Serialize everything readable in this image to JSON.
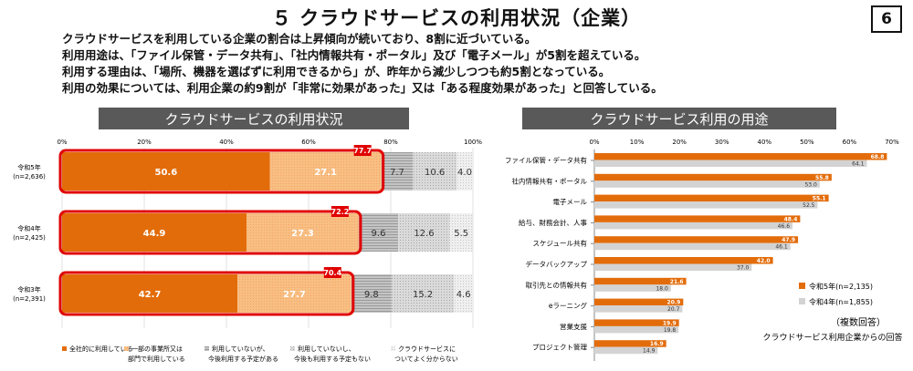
{
  "page": {
    "title": "５ クラウドサービスの利用状況（企業）",
    "number": "6",
    "summary": [
      "クラウドサービスを利用している企業の割合は上昇傾向が続いており、8割に近づいている。",
      "利用用途は、「ファイル保管・データ共有」、「社内情報共有・ポータル」及び「電子メール」が5割を超えている。",
      "利用する理由は、「場所、機器を選ばずに利用できるから」が、昨年から減少しつつも約5割となっている。",
      "利用の効果については、利用企業の約9割が「非常に効果があった」又は「ある程度効果があった」と回答している。"
    ]
  },
  "left": {
    "banner": "クラウドサービスの利用状況",
    "legend": [
      {
        "lines": [
          "全社的に利用している"
        ],
        "color": "#e36c0a"
      },
      {
        "lines": [
          "一部の事業所又は",
          "部門で利用している"
        ],
        "color": "#f8bf84"
      },
      {
        "lines": [
          "利用していないが、",
          "今後利用する予定がある"
        ],
        "color": "#b7b7b7"
      },
      {
        "lines": [
          "利用していないし、",
          "今後も利用する予定もない"
        ],
        "color": "#d0d0d0"
      },
      {
        "lines": [
          "クラウドサービスに",
          "ついてよく分からない"
        ],
        "color": "#e8e8e8"
      }
    ]
  },
  "right": {
    "banner": "クラウドサービス利用の用途",
    "note1": "（複数回答）",
    "note2": "クラウドサービス利用企業からの回答"
  },
  "chart_data": [
    {
      "type": "bar",
      "orientation": "horizontal-stacked-100",
      "xlim": [
        0,
        100
      ],
      "ticks": [
        "0%",
        "20%",
        "40%",
        "60%",
        "80%",
        "100%"
      ],
      "categories": [
        {
          "name": "令和5年",
          "n": "(n=2,636)",
          "total": "77.7"
        },
        {
          "name": "令和4年",
          "n": "(n=2,425)",
          "total": "72.2"
        },
        {
          "name": "令和3年",
          "n": "(n=2,391)",
          "total": "70.4"
        }
      ],
      "series": [
        {
          "name": "全社的に利用している",
          "color": "#e36c0a",
          "values": [
            50.6,
            44.9,
            42.7
          ]
        },
        {
          "name": "一部の事業所又は部門で利用している",
          "color": "#f8bf84",
          "values": [
            27.1,
            27.3,
            27.7
          ]
        },
        {
          "name": "利用していないが、今後利用する予定がある",
          "color": "#b7b7b7",
          "values": [
            7.7,
            9.6,
            9.8
          ]
        },
        {
          "name": "利用していないし、今後も利用する予定もない",
          "color": "#d0d0d0",
          "values": [
            10.6,
            12.6,
            15.2
          ]
        },
        {
          "name": "クラウドサービスについてよく分からない",
          "color": "#e8e8e8",
          "values": [
            4.0,
            5.5,
            4.6
          ]
        }
      ]
    },
    {
      "type": "bar",
      "orientation": "horizontal-grouped",
      "xlim": [
        0,
        70
      ],
      "ticks": [
        "0%",
        "10%",
        "20%",
        "30%",
        "40%",
        "50%",
        "60%",
        "70%"
      ],
      "categories": [
        "ファイル保管・データ共有",
        "社内情報共有・ポータル",
        "電子メール",
        "給与、財務会計、人事",
        "スケジュール共有",
        "データバックアップ",
        "取引先との情報共有",
        "eラーニング",
        "営業支援",
        "プロジェクト管理"
      ],
      "series": [
        {
          "name": "令和5年(n=2,135)",
          "color": "#e36c0a",
          "values": [
            68.8,
            55.8,
            55.1,
            48.4,
            47.9,
            42.0,
            21.6,
            20.9,
            19.9,
            16.9
          ]
        },
        {
          "name": "令和4年(n=1,855)",
          "color": "#d3d3d3",
          "values": [
            64.1,
            53.0,
            52.5,
            46.6,
            46.1,
            37.0,
            18.0,
            20.7,
            19.8,
            14.9
          ]
        }
      ]
    }
  ]
}
